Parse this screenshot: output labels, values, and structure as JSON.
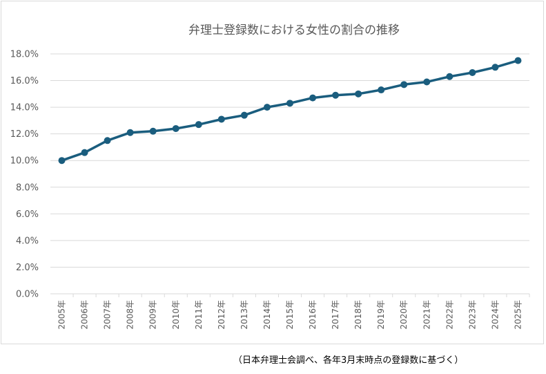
{
  "chart_data": {
    "type": "line",
    "title": "弁理士登録数における女性の割合の推移",
    "xlabel": "",
    "ylabel": "",
    "categories": [
      "2005年",
      "2006年",
      "2007年",
      "2008年",
      "2009年",
      "2010年",
      "2011年",
      "2012年",
      "2013年",
      "2014年",
      "2015年",
      "2016年",
      "2017年",
      "2018年",
      "2019年",
      "2020年",
      "2021年",
      "2022年",
      "2023年",
      "2024年",
      "2025年"
    ],
    "series": [
      {
        "values": [
          10.0,
          10.6,
          11.5,
          12.1,
          12.2,
          12.4,
          12.7,
          13.1,
          13.4,
          14.0,
          14.3,
          14.7,
          14.9,
          15.0,
          15.3,
          15.7,
          15.9,
          16.3,
          16.6,
          17.0,
          17.5
        ]
      }
    ],
    "ylim": [
      0,
      18
    ],
    "yticks": [
      "0.0%",
      "2.0%",
      "4.0%",
      "6.0%",
      "8.0%",
      "10.0%",
      "12.0%",
      "14.0%",
      "16.0%",
      "18.0%"
    ],
    "grid": true,
    "legend": "none",
    "colors": {
      "line": "#1a5d7e",
      "grid": "#d9d9d9",
      "text": "#595959"
    }
  },
  "source_note": "（日本弁理士会調べ、各年3月末時点の登録数に基づく）"
}
